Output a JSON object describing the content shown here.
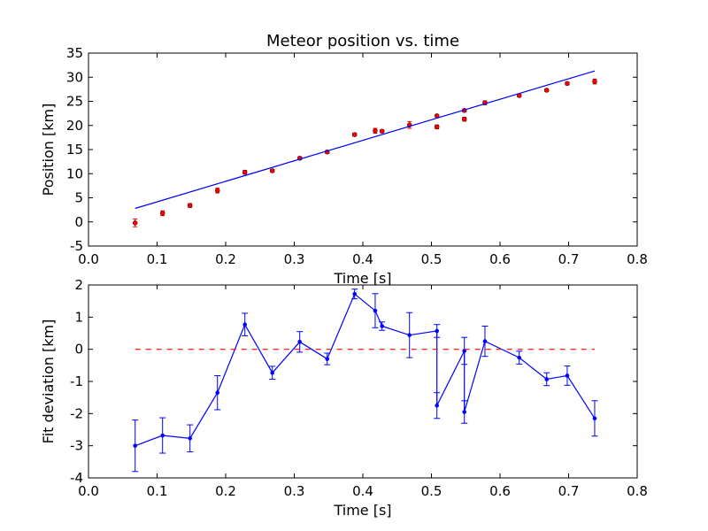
{
  "colors": {
    "points": "#ff0000",
    "fit_line": "#0000ff",
    "residual": "#0000ff",
    "zero_line": "#ff0000",
    "axes": "#000000"
  },
  "chart_data": [
    {
      "type": "scatter",
      "title": "Meteor position vs. time",
      "xlabel": "Time [s]",
      "ylabel": "Position [km]",
      "xlim": [
        0.0,
        0.8
      ],
      "ylim": [
        -5,
        35
      ],
      "xticks": [
        "0.0",
        "0.1",
        "0.2",
        "0.3",
        "0.4",
        "0.5",
        "0.6",
        "0.7",
        "0.8"
      ],
      "yticks": [
        "-5",
        "0",
        "5",
        "10",
        "15",
        "20",
        "25",
        "30",
        "35"
      ],
      "grid": false,
      "series": [
        {
          "kind": "points_with_errorbars",
          "x": [
            0.068,
            0.108,
            0.148,
            0.188,
            0.228,
            0.268,
            0.308,
            0.348,
            0.388,
            0.418,
            0.428,
            0.468,
            0.508,
            0.508,
            0.548,
            0.548,
            0.578,
            0.628,
            0.668,
            0.698,
            0.738
          ],
          "y": [
            -0.2,
            1.8,
            3.4,
            6.5,
            10.3,
            10.6,
            13.2,
            14.5,
            18.1,
            18.9,
            18.8,
            20.1,
            22.0,
            19.7,
            23.1,
            21.3,
            24.7,
            26.2,
            27.3,
            28.7,
            29.1
          ],
          "yerr": [
            0.8,
            0.5,
            0.4,
            0.5,
            0.4,
            0.3,
            0.3,
            0.3,
            0.3,
            0.5,
            0.3,
            0.7,
            0.2,
            0.4,
            0.3,
            0.4,
            0.4,
            0.3,
            0.3,
            0.3,
            0.5
          ]
        },
        {
          "kind": "line",
          "x": [
            0.068,
            0.738
          ],
          "y": [
            2.8,
            31.3
          ]
        }
      ]
    },
    {
      "type": "line",
      "title": "",
      "xlabel": "Time [s]",
      "ylabel": "Fit deviation [km]",
      "xlim": [
        0.0,
        0.8
      ],
      "ylim": [
        -4,
        2
      ],
      "xticks": [
        "0.0",
        "0.1",
        "0.2",
        "0.3",
        "0.4",
        "0.5",
        "0.6",
        "0.7",
        "0.8"
      ],
      "yticks": [
        "-4",
        "-3",
        "-2",
        "-1",
        "0",
        "1",
        "2"
      ],
      "grid": false,
      "series": [
        {
          "kind": "line_with_errorbars",
          "x": [
            0.068,
            0.108,
            0.148,
            0.188,
            0.228,
            0.268,
            0.308,
            0.348,
            0.388,
            0.418,
            0.428,
            0.468,
            0.508,
            0.508,
            0.548,
            0.548,
            0.578,
            0.628,
            0.668,
            0.698,
            0.738
          ],
          "y": [
            -3.0,
            -2.68,
            -2.77,
            -1.35,
            0.77,
            -0.73,
            0.23,
            -0.3,
            1.72,
            1.2,
            0.72,
            0.44,
            0.57,
            -1.75,
            -0.05,
            -1.95,
            0.25,
            -0.26,
            -0.93,
            -0.82,
            -2.15
          ],
          "yerr": [
            0.8,
            0.55,
            0.42,
            0.53,
            0.35,
            0.2,
            0.32,
            0.18,
            0.15,
            0.53,
            0.13,
            0.7,
            0.2,
            0.4,
            0.42,
            0.35,
            0.47,
            0.2,
            0.2,
            0.3,
            0.55
          ]
        },
        {
          "kind": "dashed_line",
          "x": [
            0.068,
            0.738
          ],
          "y": [
            0,
            0
          ]
        }
      ]
    }
  ]
}
